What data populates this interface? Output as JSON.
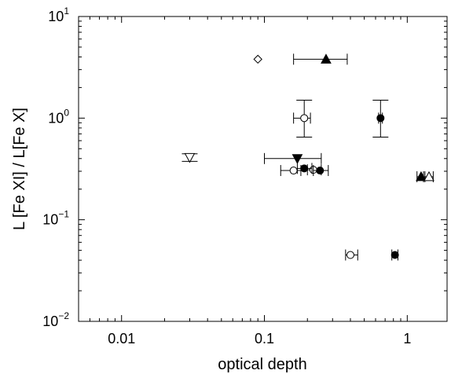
{
  "chart_data": {
    "type": "scatter",
    "title": "",
    "xlabel": "optical depth",
    "ylabel": "L [Fe XI] / L[Fe X]",
    "xscale": "log",
    "yscale": "log",
    "xlim": [
      0.005,
      1.9
    ],
    "ylim": [
      0.01,
      10
    ],
    "x_ticks": [
      {
        "value": 0.01,
        "label": "0.01"
      },
      {
        "value": 0.1,
        "label": "0.1"
      },
      {
        "value": 1,
        "label": "1"
      }
    ],
    "y_ticks": [
      {
        "value": 0.01,
        "base": "10",
        "exp": "−2"
      },
      {
        "value": 0.1,
        "base": "10",
        "exp": "−1"
      },
      {
        "value": 1,
        "base": "10",
        "exp": "0"
      },
      {
        "value": 10,
        "base": "10",
        "exp": "1"
      }
    ],
    "grid": false,
    "legend": "none",
    "series": [
      {
        "marker": "diamond-open",
        "points": [
          {
            "x": 0.09,
            "y": 3.8
          }
        ]
      },
      {
        "marker": "triangle-up-filled",
        "points": [
          {
            "x": 0.27,
            "y": 3.8,
            "xerr": [
              0.16,
              0.38
            ]
          },
          {
            "x": 1.25,
            "y": 0.265,
            "xerr": [
              1.17,
              1.33
            ]
          }
        ]
      },
      {
        "marker": "triangle-up-open",
        "points": [
          {
            "x": 1.42,
            "y": 0.265,
            "xerr": [
              1.3,
              1.52
            ]
          }
        ]
      },
      {
        "marker": "triangle-down-filled",
        "points": [
          {
            "x": 0.17,
            "y": 0.4,
            "xerr": [
              0.1,
              0.25
            ]
          }
        ]
      },
      {
        "marker": "triangle-down-open",
        "points": [
          {
            "x": 0.03,
            "y": 0.41,
            "yerr": [
              0.375,
              0.445
            ]
          }
        ]
      },
      {
        "marker": "circle-open",
        "points": [
          {
            "x": 0.19,
            "y": 1.0,
            "xerr": [
              0.16,
              0.21
            ],
            "yerr": [
              0.65,
              1.5
            ]
          },
          {
            "x": 0.16,
            "y": 0.305,
            "xerr": [
              0.13,
              0.18
            ]
          },
          {
            "x": 0.22,
            "y": 0.31,
            "xerr": [
              0.2,
              0.25
            ]
          },
          {
            "x": 0.4,
            "y": 0.045,
            "xerr": [
              0.37,
              0.45
            ]
          }
        ]
      },
      {
        "marker": "circle-filled",
        "points": [
          {
            "x": 0.65,
            "y": 1.0,
            "xerr": [
              0.63,
              0.67
            ],
            "yerr": [
              0.65,
              1.5
            ]
          },
          {
            "x": 0.19,
            "y": 0.32,
            "xerr": [
              0.17,
              0.215
            ]
          },
          {
            "x": 0.245,
            "y": 0.305,
            "xerr": [
              0.22,
              0.28
            ]
          },
          {
            "x": 0.82,
            "y": 0.045,
            "xerr": [
              0.78,
              0.86
            ]
          }
        ]
      }
    ]
  }
}
